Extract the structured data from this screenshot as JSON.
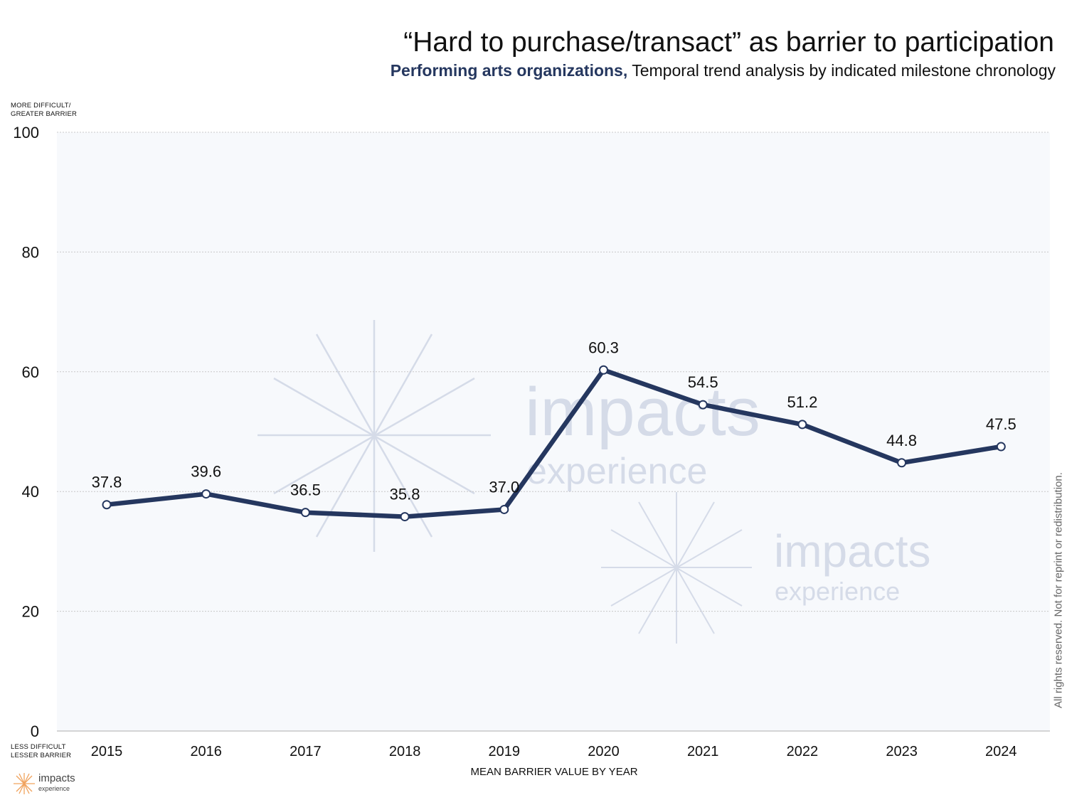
{
  "header": {
    "title": "“Hard to purchase/transact” as barrier to participation",
    "subtitle_bold": "Performing arts organizations,",
    "subtitle_rest": " Temporal trend analysis by indicated milestone chronology"
  },
  "axis_notes": {
    "top": "MORE DIFFICULT/\nGREATER BARRIER",
    "bottom": "LESS DIFFICULT\nLESSER BARRIER"
  },
  "rights_text": "All rights reserved. Not for reprint or redistribution.",
  "logo": {
    "name": "impacts",
    "sub": "experience"
  },
  "watermark": {
    "word": "impacts",
    "sub": "experience"
  },
  "colors": {
    "line": "#25375f",
    "plot_bg": "#f7f9fc",
    "grid": "#c8c8c8",
    "watermark": "#d5dbe8",
    "logo_rays": "#f0a35e"
  },
  "chart_data": {
    "type": "line",
    "title": "“Hard to purchase/transact” as barrier to participation",
    "xlabel": "MEAN BARRIER VALUE BY YEAR",
    "ylabel": "",
    "categories": [
      "2015",
      "2016",
      "2017",
      "2018",
      "2019",
      "2020",
      "2021",
      "2022",
      "2023",
      "2024"
    ],
    "series": [
      {
        "values": [
          37.8,
          39.6,
          36.5,
          35.8,
          37.0,
          60.3,
          54.5,
          51.2,
          44.8,
          47.5
        ]
      }
    ],
    "data_labels": [
      "37.8",
      "39.6",
      "36.5",
      "35.8",
      "37.0",
      "60.3",
      "54.5",
      "51.2",
      "44.8",
      "47.5"
    ],
    "ylim": [
      0,
      100
    ],
    "yticks": [
      "0",
      "20",
      "40",
      "60",
      "80",
      "100"
    ],
    "grid": true,
    "legend": "none"
  }
}
